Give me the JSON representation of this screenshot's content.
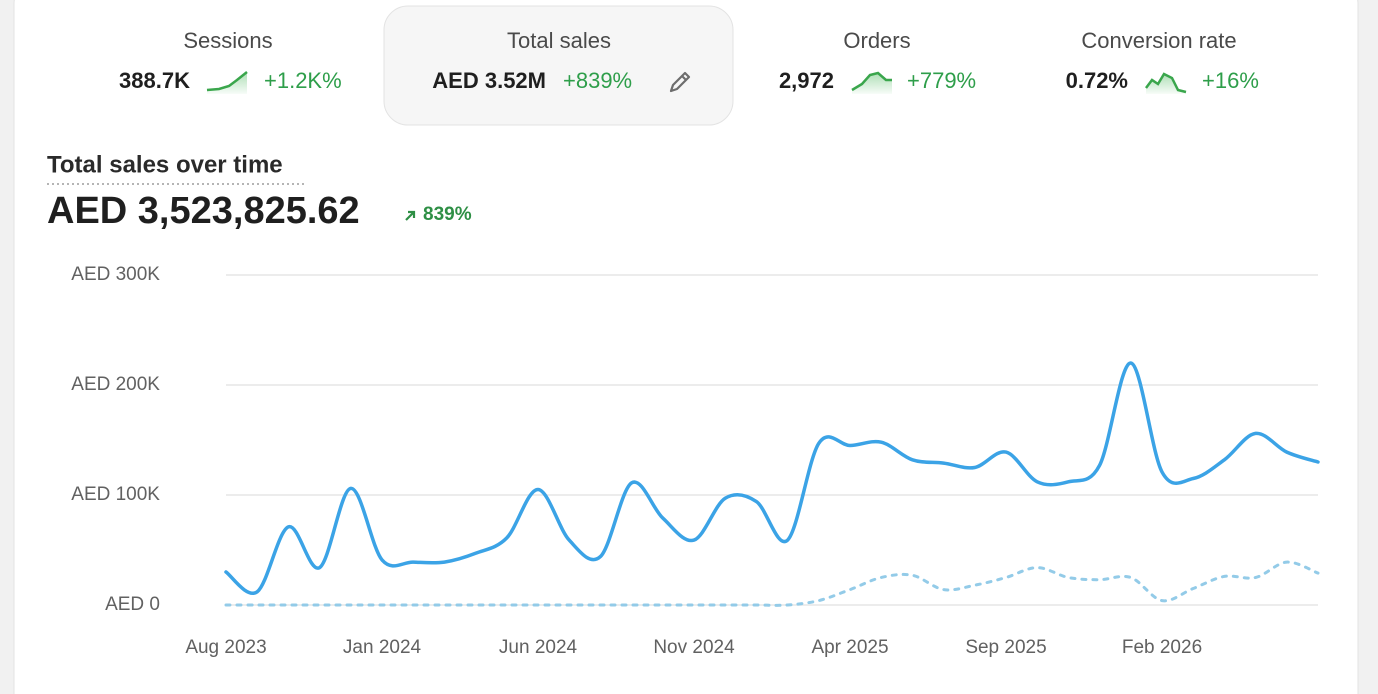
{
  "metrics": [
    {
      "label": "Sessions",
      "value": "388.7K",
      "change": "+1.2K%"
    },
    {
      "label": "Total sales",
      "value": "AED 3.52M",
      "change": "+839%"
    },
    {
      "label": "Orders",
      "value": "2,972",
      "change": "+779%"
    },
    {
      "label": "Conversion rate",
      "value": "0.72%",
      "change": "+16%"
    }
  ],
  "chart_data": {
    "type": "line",
    "title": "Total sales over time",
    "total": "AED 3,523,825.62",
    "change": "839%",
    "categories": [
      "Aug 2023",
      null,
      null,
      null,
      null,
      "Jan 2024",
      null,
      null,
      null,
      null,
      "Jun 2024",
      null,
      null,
      null,
      null,
      "Nov 2024",
      null,
      null,
      null,
      null,
      "Apr 2025",
      null,
      null,
      null,
      null,
      "Sep 2025",
      null,
      null,
      null,
      null,
      "Feb 2026",
      null,
      null,
      null,
      null,
      null
    ],
    "series": [
      {
        "color": "#3ba3e6",
        "values": [
          30000,
          12000,
          71000,
          34000,
          106000,
          41000,
          39000,
          39000,
          47000,
          61000,
          105000,
          59000,
          44000,
          111000,
          79000,
          59000,
          97000,
          94000,
          59000,
          147000,
          145000,
          148000,
          132000,
          129000,
          125000,
          139000,
          112000,
          112000,
          127000,
          220000,
          121000,
          115000,
          132000,
          156000,
          139000,
          130000
        ]
      },
      {
        "color": "#93cbe8",
        "style": "dashed",
        "values": [
          0,
          0,
          0,
          0,
          0,
          0,
          0,
          0,
          0,
          0,
          0,
          0,
          0,
          0,
          0,
          0,
          0,
          0,
          0,
          4000,
          14000,
          25000,
          27000,
          14000,
          18000,
          25000,
          34000,
          25000,
          23000,
          25000,
          4000,
          15000,
          26000,
          25000,
          39000,
          29000
        ]
      }
    ],
    "ylim": [
      0,
      300000
    ],
    "yticks": [
      {
        "value": 0,
        "label": "AED 0"
      },
      {
        "value": 100000,
        "label": "AED 100K"
      },
      {
        "value": 200000,
        "label": "AED 200K"
      },
      {
        "value": 300000,
        "label": "AED 300K"
      }
    ],
    "grid": true
  }
}
